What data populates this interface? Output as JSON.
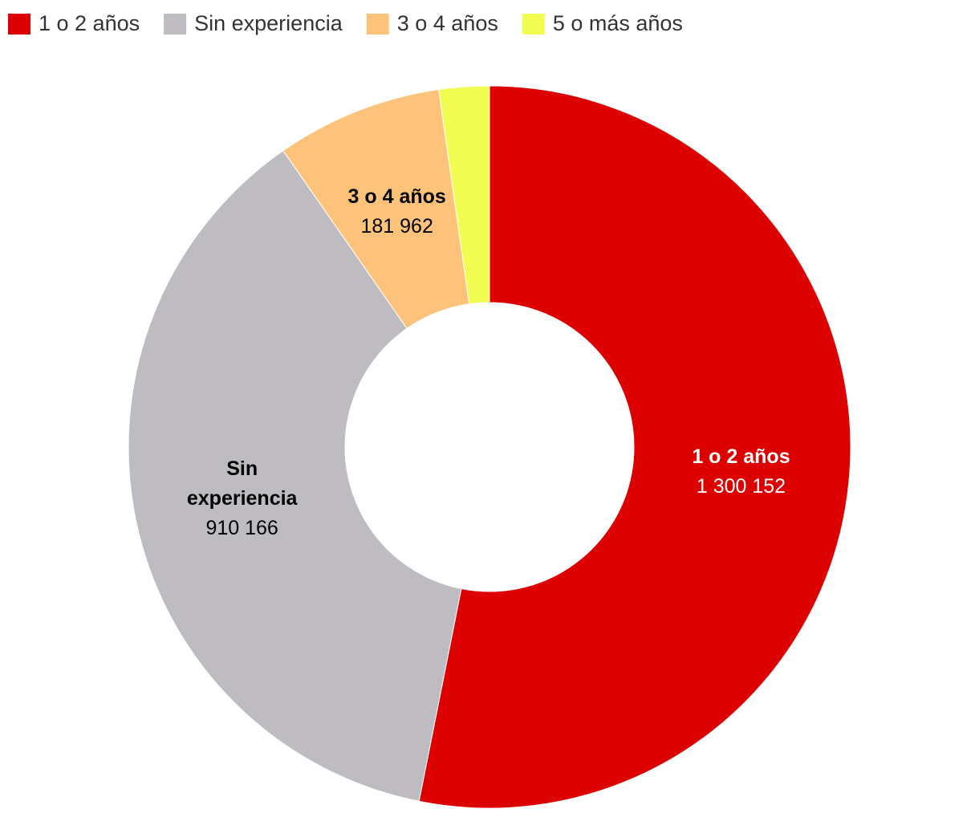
{
  "chart_data": {
    "type": "donut",
    "categories": [
      "1 o 2 años",
      "Sin experiencia",
      "3 o 4 años",
      "5 o más años"
    ],
    "values": [
      1300152,
      910166,
      181962,
      55000
    ],
    "value_labels": [
      "1 300 152",
      "910 166",
      "181 962",
      null
    ],
    "colors": [
      "#dd0000",
      "#bebcc0",
      "#fec37b",
      "#f2fd52"
    ],
    "label_colors": [
      "#ffffff",
      "#000000",
      "#000000",
      "#000000"
    ],
    "legend": "top-left"
  }
}
